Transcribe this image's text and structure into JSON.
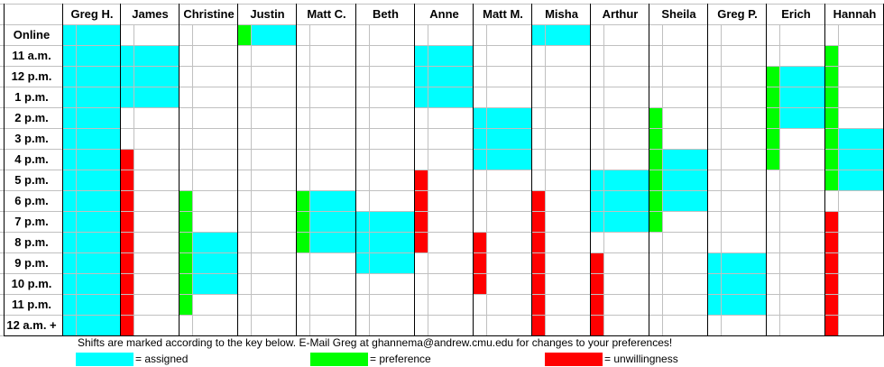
{
  "people": [
    "Greg H.",
    "James",
    "Christine",
    "Justin",
    "Matt C.",
    "Beth",
    "Anne",
    "Matt M.",
    "Misha",
    "Arthur",
    "Sheila",
    "Greg P.",
    "Erich",
    "Hannah"
  ],
  "rows": [
    "Online",
    "11 a.m.",
    "12 p.m.",
    "1 p.m.",
    "2 p.m.",
    "3 p.m.",
    "4 p.m.",
    "5 p.m.",
    "6 p.m.",
    "7 p.m.",
    "8 p.m.",
    "9 p.m.",
    "10 p.m.",
    "11 p.m.",
    "12 a.m. +"
  ],
  "colors": {
    "assigned": "#00ffff",
    "preference": "#00ff00",
    "unwillingness": "#ff0000"
  },
  "schedule": [
    {
      "person": "Greg H.",
      "assigned": [
        0,
        1,
        2,
        3,
        4,
        5,
        6,
        7,
        8,
        9,
        10,
        11,
        12,
        13,
        14
      ],
      "preference": [],
      "unwillingness": []
    },
    {
      "person": "James",
      "assigned": [
        1,
        2,
        3
      ],
      "preference": [],
      "unwillingness": [
        6,
        7,
        8,
        9,
        10,
        11,
        12,
        13,
        14
      ]
    },
    {
      "person": "Christine",
      "assigned": [
        10,
        11,
        12
      ],
      "preference": [
        8,
        9,
        10,
        11,
        12,
        13
      ],
      "unwillingness": []
    },
    {
      "person": "Justin",
      "assigned": [
        0
      ],
      "preference": [
        0
      ],
      "unwillingness": []
    },
    {
      "person": "Matt C.",
      "assigned": [
        8,
        9,
        10
      ],
      "preference": [
        8,
        9,
        10
      ],
      "unwillingness": []
    },
    {
      "person": "Beth",
      "assigned": [
        9,
        10,
        11
      ],
      "preference": [],
      "unwillingness": []
    },
    {
      "person": "Anne",
      "assigned": [
        1,
        2,
        3
      ],
      "preference": [],
      "unwillingness": [
        7,
        8,
        9,
        10
      ]
    },
    {
      "person": "Matt M.",
      "assigned": [
        4,
        5,
        6
      ],
      "preference": [],
      "unwillingness": [
        10,
        11,
        12
      ]
    },
    {
      "person": "Misha",
      "assigned": [
        0
      ],
      "preference": [],
      "unwillingness": [
        8,
        9,
        10,
        11,
        12,
        13,
        14
      ]
    },
    {
      "person": "Arthur",
      "assigned": [
        7,
        8,
        9
      ],
      "preference": [],
      "unwillingness": [
        11,
        12,
        13,
        14
      ]
    },
    {
      "person": "Sheila",
      "assigned": [
        6,
        7,
        8
      ],
      "preference": [
        4,
        5,
        6,
        7,
        8,
        9
      ],
      "unwillingness": []
    },
    {
      "person": "Greg P.",
      "assigned": [
        11,
        12,
        13
      ],
      "preference": [],
      "unwillingness": []
    },
    {
      "person": "Erich",
      "assigned": [
        2,
        3,
        4
      ],
      "preference": [
        2,
        3,
        4,
        5,
        6
      ],
      "unwillingness": []
    },
    {
      "person": "Hannah",
      "assigned": [
        5,
        6,
        7
      ],
      "preference": [
        1,
        2,
        3,
        4,
        5,
        6,
        7
      ],
      "unwillingness": [
        9,
        10,
        11,
        12,
        13,
        14
      ]
    }
  ],
  "note": "Shifts are marked according to the key below.  E-Mail Greg at ghannema@andrew.cmu.edu for changes to your preferences!",
  "key": [
    {
      "label": "= assigned",
      "color": "#00ffff"
    },
    {
      "label": "= preference",
      "color": "#00ff00"
    },
    {
      "label": "= unwillingness",
      "color": "#ff0000"
    }
  ]
}
